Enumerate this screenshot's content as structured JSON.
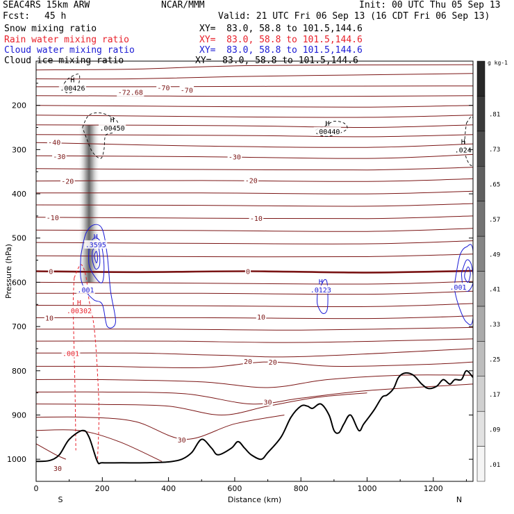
{
  "header": {
    "model": "SEAC4RS 15km ARW",
    "producer": "NCAR/MMM",
    "init": "Init: 00 UTC Thu 05 Sep 13",
    "fcst_label": "Fcst:",
    "fcst_value": "45 h",
    "valid": "Valid: 21 UTC Fri 06 Sep 13 (16 CDT Fri 06 Sep 13)"
  },
  "legend": [
    {
      "name": "Snow mixing ratio",
      "xy": "XY=  83.0, 58.8 to 101.5,144.6",
      "color": "#000000"
    },
    {
      "name": "Rain water mixing ratio",
      "xy": "XY=  83.0, 58.8 to 101.5,144.6",
      "color": "#e8202a"
    },
    {
      "name": "Cloud water mixing ratio",
      "xy": "XY=  83.0, 58.8 to 101.5,144.6",
      "color": "#1a1ad4"
    },
    {
      "name": "Cloud ice mixing ratio",
      "xy": "XY=  83.0, 58.8 to 101.5,144.6",
      "color": "#000000"
    }
  ],
  "chart_data": {
    "type": "cross-section",
    "xlabel": "Distance (km)",
    "ylabel": "Pressure (hPa)",
    "xlim": [
      0,
      1320
    ],
    "ylim": [
      1050,
      100
    ],
    "y_log": false,
    "x_ticks": [
      0,
      200,
      400,
      600,
      800,
      1000,
      1200
    ],
    "y_ticks": [
      200,
      300,
      400,
      500,
      600,
      700,
      800,
      900,
      1000
    ],
    "left_endpoint": "S",
    "right_endpoint": "N",
    "colorbar": {
      "units": "g kg-1",
      "levels": [
        ".01",
        ".09",
        ".17",
        ".25",
        ".33",
        ".41",
        ".49",
        ".57",
        ".65",
        ".73",
        ".81"
      ]
    },
    "temperature_labels": [
      {
        "text": "-72.68",
        "x": 285,
        "p": 170
      },
      {
        "text": "-70",
        "x": 385,
        "p": 160
      },
      {
        "text": "-70",
        "x": 455,
        "p": 165
      },
      {
        "text": "-40",
        "x": 55,
        "p": 283
      },
      {
        "text": "-30",
        "x": 70,
        "p": 315
      },
      {
        "text": "-30",
        "x": 600,
        "p": 316
      },
      {
        "text": "-20",
        "x": 95,
        "p": 371
      },
      {
        "text": "-20",
        "x": 650,
        "p": 369
      },
      {
        "text": "-10",
        "x": 50,
        "p": 453
      },
      {
        "text": "-10",
        "x": 665,
        "p": 455
      },
      {
        "text": "0",
        "x": 45,
        "p": 575
      },
      {
        "text": "0",
        "x": 640,
        "p": 575
      },
      {
        "text": "10",
        "x": 40,
        "p": 680
      },
      {
        "text": "10",
        "x": 680,
        "p": 678
      },
      {
        "text": "20",
        "x": 640,
        "p": 778
      },
      {
        "text": "20",
        "x": 715,
        "p": 780
      },
      {
        "text": "30",
        "x": 700,
        "p": 870
      },
      {
        "text": "30",
        "x": 440,
        "p": 956
      },
      {
        "text": "30",
        "x": 65,
        "p": 1020
      }
    ],
    "max_labels": [
      {
        "text": "H",
        "x": 110,
        "p": 162,
        "value": ".00426",
        "color": "#000000"
      },
      {
        "text": "H",
        "x": 230,
        "p": 252,
        "value": ".00450",
        "color": "#000000"
      },
      {
        "text": "H",
        "x": 880,
        "p": 260,
        "value": ".00440",
        "color": "#000000"
      },
      {
        "text": "H",
        "x": 1290,
        "p": 302,
        "value": ".024",
        "color": "#000000"
      },
      {
        "text": "H",
        "x": 180,
        "p": 516,
        "value": ".3595",
        "color": "#1a1ad4"
      },
      {
        "text": "",
        "x": 150,
        "p": 618,
        "value": ".001",
        "color": "#1a1ad4"
      },
      {
        "text": "H",
        "x": 860,
        "p": 618,
        "value": ".0123",
        "color": "#1a1ad4"
      },
      {
        "text": "",
        "x": 1275,
        "p": 612,
        "value": ".001",
        "color": "#1a1ad4"
      },
      {
        "text": "H",
        "x": 130,
        "p": 665,
        "value": ".00302",
        "color": "#e8202a"
      },
      {
        "text": "",
        "x": 105,
        "p": 762,
        "value": ".001",
        "color": "#e8202a"
      }
    ],
    "terrain": [
      [
        0,
        1005
      ],
      [
        40,
        1003
      ],
      [
        70,
        990
      ],
      [
        100,
        955
      ],
      [
        140,
        935
      ],
      [
        160,
        950
      ],
      [
        185,
        1005
      ],
      [
        200,
        1008
      ],
      [
        260,
        1008
      ],
      [
        330,
        1008
      ],
      [
        400,
        1006
      ],
      [
        440,
        1000
      ],
      [
        470,
        985
      ],
      [
        500,
        955
      ],
      [
        530,
        975
      ],
      [
        550,
        990
      ],
      [
        590,
        975
      ],
      [
        610,
        960
      ],
      [
        630,
        975
      ],
      [
        650,
        990
      ],
      [
        680,
        1000
      ],
      [
        700,
        985
      ],
      [
        740,
        950
      ],
      [
        770,
        905
      ],
      [
        800,
        880
      ],
      [
        820,
        880
      ],
      [
        835,
        885
      ],
      [
        860,
        875
      ],
      [
        885,
        900
      ],
      [
        900,
        935
      ],
      [
        915,
        940
      ],
      [
        930,
        920
      ],
      [
        950,
        900
      ],
      [
        975,
        935
      ],
      [
        990,
        920
      ],
      [
        1020,
        890
      ],
      [
        1045,
        860
      ],
      [
        1060,
        855
      ],
      [
        1080,
        840
      ],
      [
        1095,
        815
      ],
      [
        1115,
        805
      ],
      [
        1140,
        810
      ],
      [
        1165,
        830
      ],
      [
        1185,
        840
      ],
      [
        1210,
        835
      ],
      [
        1230,
        820
      ],
      [
        1250,
        830
      ],
      [
        1265,
        820
      ],
      [
        1285,
        820
      ],
      [
        1300,
        800
      ],
      [
        1320,
        815
      ]
    ],
    "isotherms": [
      {
        "pts": [
          [
            0,
            120
          ],
          [
            300,
            118
          ],
          [
            660,
            110
          ],
          [
            1320,
            108
          ]
        ]
      },
      {
        "pts": [
          [
            0,
            140
          ],
          [
            290,
            140
          ],
          [
            600,
            135
          ],
          [
            1100,
            130
          ],
          [
            1320,
            128
          ]
        ]
      },
      {
        "pts": [
          [
            0,
            158
          ],
          [
            300,
            158
          ],
          [
            700,
            157
          ],
          [
            1320,
            156
          ]
        ]
      },
      {
        "pts": [
          [
            0,
            178
          ],
          [
            400,
            179
          ],
          [
            800,
            180
          ],
          [
            1320,
            178
          ]
        ]
      },
      {
        "pts": [
          [
            0,
            200
          ],
          [
            600,
            203
          ],
          [
            1000,
            204
          ],
          [
            1320,
            200
          ]
        ]
      },
      {
        "pts": [
          [
            0,
            222
          ],
          [
            600,
            226
          ],
          [
            1000,
            227
          ],
          [
            1320,
            222
          ]
        ]
      },
      {
        "pts": [
          [
            0,
            244
          ],
          [
            600,
            246
          ],
          [
            1000,
            250
          ],
          [
            1320,
            244
          ]
        ]
      },
      {
        "pts": [
          [
            0,
            266
          ],
          [
            600,
            268
          ],
          [
            1000,
            271
          ],
          [
            1320,
            266
          ]
        ]
      },
      {
        "pts": [
          [
            0,
            284
          ],
          [
            500,
            292
          ],
          [
            1000,
            295
          ],
          [
            1320,
            287
          ]
        ]
      },
      {
        "pts": [
          [
            0,
            314
          ],
          [
            500,
            316
          ],
          [
            1000,
            320
          ],
          [
            1320,
            311
          ]
        ]
      },
      {
        "pts": [
          [
            0,
            343
          ],
          [
            500,
            345
          ],
          [
            1000,
            346
          ],
          [
            1320,
            340
          ]
        ]
      },
      {
        "pts": [
          [
            0,
            371
          ],
          [
            500,
            370
          ],
          [
            1000,
            372
          ],
          [
            1320,
            366
          ]
        ]
      },
      {
        "pts": [
          [
            0,
            398
          ],
          [
            500,
            398
          ],
          [
            1000,
            400
          ],
          [
            1320,
            394
          ]
        ]
      },
      {
        "pts": [
          [
            0,
            425
          ],
          [
            500,
            426
          ],
          [
            1000,
            428
          ],
          [
            1320,
            422
          ]
        ]
      },
      {
        "pts": [
          [
            0,
            453
          ],
          [
            500,
            455
          ],
          [
            1000,
            456
          ],
          [
            1320,
            450
          ]
        ]
      },
      {
        "pts": [
          [
            0,
            482
          ],
          [
            500,
            483
          ],
          [
            1000,
            485
          ],
          [
            1320,
            478
          ]
        ]
      },
      {
        "pts": [
          [
            0,
            510
          ],
          [
            500,
            512
          ],
          [
            1000,
            513
          ],
          [
            1320,
            506
          ]
        ]
      },
      {
        "pts": [
          [
            0,
            540
          ],
          [
            500,
            542
          ],
          [
            1000,
            542
          ],
          [
            1320,
            536
          ]
        ]
      },
      {
        "pts": [
          [
            0,
            575
          ],
          [
            300,
            577
          ],
          [
            640,
            575
          ],
          [
            1000,
            578
          ],
          [
            1320,
            574
          ]
        ],
        "bold": true
      },
      {
        "pts": [
          [
            0,
            600
          ],
          [
            500,
            602
          ],
          [
            1000,
            604
          ],
          [
            1320,
            598
          ]
        ]
      },
      {
        "pts": [
          [
            0,
            625
          ],
          [
            500,
            625
          ],
          [
            1000,
            627
          ],
          [
            1320,
            620
          ]
        ]
      },
      {
        "pts": [
          [
            0,
            652
          ],
          [
            500,
            653
          ],
          [
            1000,
            655
          ],
          [
            1320,
            648
          ]
        ]
      },
      {
        "pts": [
          [
            0,
            680
          ],
          [
            500,
            680
          ],
          [
            1000,
            682
          ],
          [
            1320,
            676
          ]
        ]
      },
      {
        "pts": [
          [
            0,
            706
          ],
          [
            400,
            706
          ],
          [
            800,
            708
          ],
          [
            1320,
            702
          ]
        ]
      },
      {
        "pts": [
          [
            0,
            733
          ],
          [
            400,
            733
          ],
          [
            800,
            736
          ],
          [
            1320,
            728
          ]
        ]
      },
      {
        "pts": [
          [
            0,
            760
          ],
          [
            300,
            760
          ],
          [
            560,
            765
          ],
          [
            800,
            768
          ],
          [
            1320,
            750
          ]
        ]
      },
      {
        "pts": [
          [
            0,
            790
          ],
          [
            200,
            790
          ],
          [
            500,
            793
          ],
          [
            700,
            780
          ],
          [
            900,
            790
          ],
          [
            1200,
            785
          ],
          [
            1320,
            780
          ]
        ]
      },
      {
        "pts": [
          [
            0,
            820
          ],
          [
            200,
            820
          ],
          [
            500,
            825
          ],
          [
            700,
            838
          ],
          [
            880,
            820
          ],
          [
            1100,
            810
          ],
          [
            1320,
            810
          ]
        ]
      },
      {
        "pts": [
          [
            0,
            848
          ],
          [
            200,
            848
          ],
          [
            450,
            852
          ],
          [
            650,
            875
          ],
          [
            800,
            862
          ],
          [
            1000,
            845
          ],
          [
            1320,
            830
          ]
        ]
      },
      {
        "pts": [
          [
            0,
            875
          ],
          [
            200,
            876
          ],
          [
            400,
            880
          ],
          [
            560,
            900
          ],
          [
            700,
            880
          ],
          [
            850,
            860
          ],
          [
            1000,
            850
          ]
        ]
      },
      {
        "pts": [
          [
            0,
            905
          ],
          [
            150,
            905
          ],
          [
            300,
            915
          ],
          [
            450,
            955
          ],
          [
            600,
            920
          ],
          [
            750,
            900
          ]
        ]
      },
      {
        "pts": [
          [
            0,
            935
          ],
          [
            130,
            935
          ],
          [
            250,
            960
          ],
          [
            380,
            1005
          ]
        ]
      },
      {
        "pts": [
          [
            0,
            965
          ],
          [
            60,
            990
          ],
          [
            90,
            1000
          ]
        ]
      }
    ],
    "snow_column": {
      "x": 160,
      "p_top": 245,
      "p_bottom": 600,
      "level": ".73"
    }
  }
}
